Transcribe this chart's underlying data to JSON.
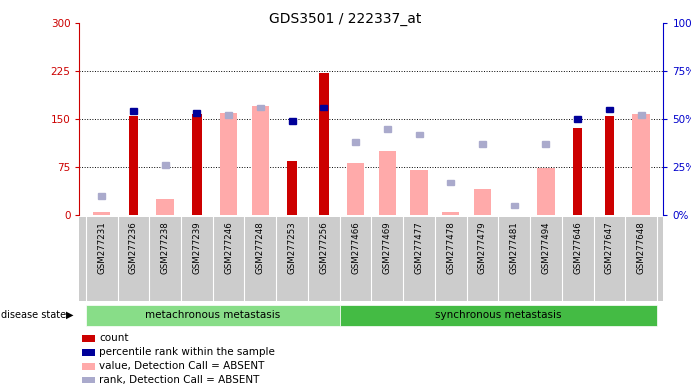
{
  "title": "GDS3501 / 222337_at",
  "samples": [
    "GSM277231",
    "GSM277236",
    "GSM277238",
    "GSM277239",
    "GSM277246",
    "GSM277248",
    "GSM277253",
    "GSM277256",
    "GSM277466",
    "GSM277469",
    "GSM277477",
    "GSM277478",
    "GSM277479",
    "GSM277481",
    "GSM277494",
    "GSM277646",
    "GSM277647",
    "GSM277648"
  ],
  "group_labels": [
    "metachronous metastasis",
    "synchronous metastasis"
  ],
  "group_ranges": [
    [
      0,
      7
    ],
    [
      8,
      17
    ]
  ],
  "count_values": [
    null,
    155,
    null,
    158,
    null,
    null,
    85,
    222,
    null,
    null,
    null,
    null,
    null,
    null,
    null,
    136,
    155,
    null
  ],
  "rank_pct": [
    null,
    54,
    null,
    53,
    null,
    null,
    49,
    56,
    null,
    null,
    null,
    null,
    null,
    null,
    null,
    50,
    55,
    null
  ],
  "absent_value": [
    5,
    null,
    25,
    null,
    160,
    170,
    null,
    null,
    82,
    100,
    70,
    5,
    40,
    null,
    73,
    null,
    null,
    158
  ],
  "absent_rank_pct": [
    10,
    null,
    26,
    null,
    52,
    56,
    null,
    null,
    38,
    45,
    42,
    17,
    37,
    5,
    37,
    null,
    null,
    52
  ],
  "ylim_left": [
    0,
    300
  ],
  "ylim_right": [
    0,
    100
  ],
  "yticks_left": [
    0,
    75,
    150,
    225,
    300
  ],
  "yticks_right": [
    0,
    25,
    50,
    75,
    100
  ],
  "ytick_labels_left": [
    "0",
    "75",
    "150",
    "225",
    "300"
  ],
  "ytick_labels_right": [
    "0%",
    "25%",
    "50%",
    "75%",
    "100%"
  ],
  "color_count": "#cc0000",
  "color_rank": "#000099",
  "color_absent_value": "#ffaaaa",
  "color_absent_rank": "#aaaacc",
  "color_group1_bg": "#88dd88",
  "color_group2_bg": "#44bb44",
  "background_color": "#ffffff",
  "plot_bg": "#ffffff",
  "label_area_bg": "#cccccc"
}
